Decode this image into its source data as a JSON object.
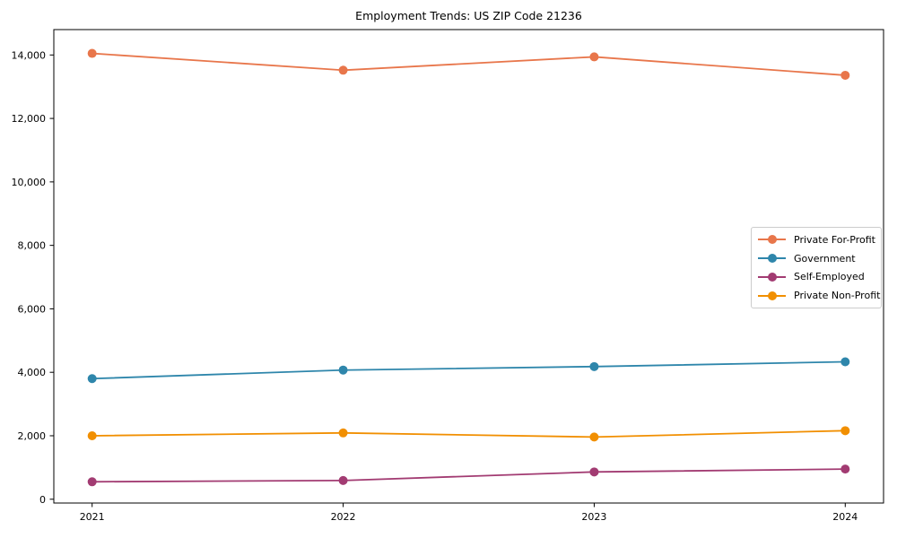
{
  "chart_data": {
    "type": "line",
    "title": "Employment Trends: US ZIP Code 21236",
    "x": [
      2021,
      2022,
      2023,
      2024
    ],
    "xtick_labels": [
      "2021",
      "2022",
      "2023",
      "2024"
    ],
    "series": [
      {
        "name": "Private For-Profit",
        "color": "#E8764B",
        "values": [
          14050,
          13520,
          13940,
          13360
        ]
      },
      {
        "name": "Government",
        "color": "#2E86AB",
        "values": [
          3800,
          4070,
          4180,
          4330
        ]
      },
      {
        "name": "Self-Employed",
        "color": "#A23B72",
        "values": [
          550,
          590,
          860,
          950
        ]
      },
      {
        "name": "Private Non-Profit",
        "color": "#F18F01",
        "values": [
          2000,
          2090,
          1960,
          2160
        ]
      }
    ],
    "xlabel": "",
    "ylabel": "",
    "ylim": [
      -120,
      14800
    ],
    "yticks": [
      0,
      2000,
      4000,
      6000,
      8000,
      10000,
      12000,
      14000
    ],
    "ytick_labels": [
      "0",
      "2,000",
      "4,000",
      "6,000",
      "8,000",
      "10,000",
      "12,000",
      "14,000"
    ],
    "grid": false,
    "legend_position": "center-right",
    "marker": "circle"
  }
}
